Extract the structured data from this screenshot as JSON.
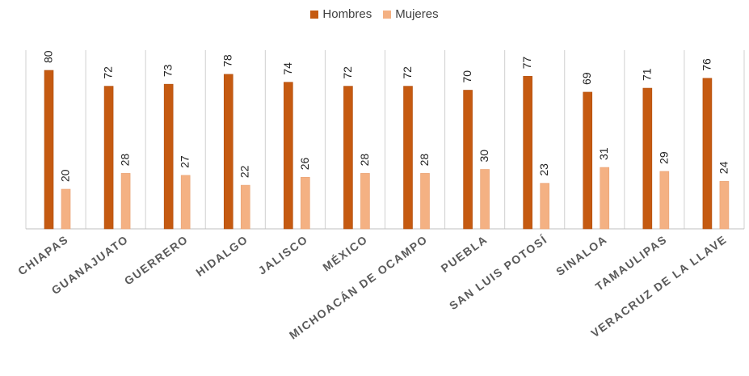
{
  "chart_data": {
    "type": "bar",
    "categories": [
      "CHIAPAS",
      "GUANAJUATO",
      "GUERRERO",
      "HIDALGO",
      "JALISCO",
      "MÉXICO",
      "MICHOACÁN DE OCAMPO",
      "PUEBLA",
      "SAN LUIS POTOSÍ",
      "SINALOA",
      "TAMAULIPAS",
      "VERACRUZ DE LA LLAVE"
    ],
    "series": [
      {
        "name": "Hombres",
        "color": "#C55A11",
        "values": [
          80,
          72,
          73,
          78,
          74,
          72,
          72,
          70,
          77,
          69,
          71,
          76
        ]
      },
      {
        "name": "Mujeres",
        "color": "#F4B183",
        "values": [
          20,
          28,
          27,
          22,
          26,
          28,
          28,
          30,
          23,
          31,
          29,
          24
        ]
      }
    ],
    "ylim": [
      0,
      90
    ],
    "grid": false,
    "category_separators": true,
    "legend_position": "top-center",
    "data_labels": true
  }
}
